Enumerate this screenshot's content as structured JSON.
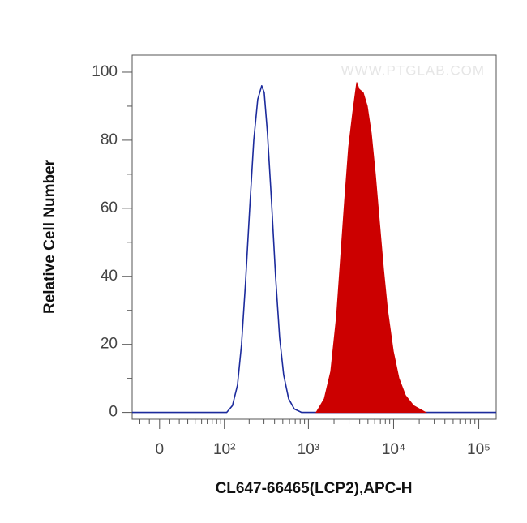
{
  "chart_data": {
    "type": "histogram-overlay",
    "watermark": "WWW.PTGLAB.COM",
    "xlabel": "CL647-66465(LCP2),APC-H",
    "ylabel": "Relative Cell Number",
    "xscale": "biexponential",
    "xlim": [
      -29,
      160000
    ],
    "ylim": [
      -2,
      105
    ],
    "xticks": [
      0,
      {
        "value": 100,
        "label": "10²"
      },
      {
        "value": 1000,
        "label": "10³"
      },
      {
        "value": 10000,
        "label": "10⁴"
      },
      {
        "value": 100000,
        "label": "10⁵"
      }
    ],
    "xminorticks": [
      -20,
      -10,
      10,
      20,
      30,
      40,
      50,
      60,
      70,
      80,
      90,
      200,
      300,
      400,
      500,
      600,
      700,
      800,
      900,
      2000,
      3000,
      4000,
      5000,
      6000,
      7000,
      8000,
      9000,
      20000,
      30000,
      40000,
      50000,
      60000,
      70000,
      80000,
      90000
    ],
    "yticks": [
      0,
      20,
      40,
      60,
      80,
      100
    ],
    "yminorticks": [
      10,
      30,
      50,
      70,
      90
    ],
    "series": [
      {
        "color": "#1c2b9c",
        "style": "line",
        "x": [
          -29,
          107,
          126,
          145,
          162,
          181,
          203,
          227,
          253,
          282,
          302,
          330,
          368,
          411,
          459,
          512,
          585,
          682,
          831,
          160000
        ],
        "values": [
          0,
          0,
          2,
          8,
          20,
          38,
          60,
          80,
          92,
          96,
          94,
          82,
          62,
          40,
          22,
          11,
          4,
          1,
          0,
          0
        ]
      },
      {
        "color": "#cc0000",
        "style": "area",
        "x": [
          1235,
          1536,
          1829,
          2134,
          2381,
          2656,
          2964,
          3308,
          3691,
          3942,
          4400,
          4912,
          5481,
          6118,
          6827,
          7622,
          8506,
          9913,
          11556,
          13779,
          17163,
          23839
        ],
        "values": [
          0,
          4,
          12,
          28,
          45,
          62,
          78,
          88,
          97,
          95,
          94,
          90,
          82,
          70,
          56,
          42,
          30,
          18,
          10,
          5,
          2,
          0
        ]
      }
    ]
  }
}
